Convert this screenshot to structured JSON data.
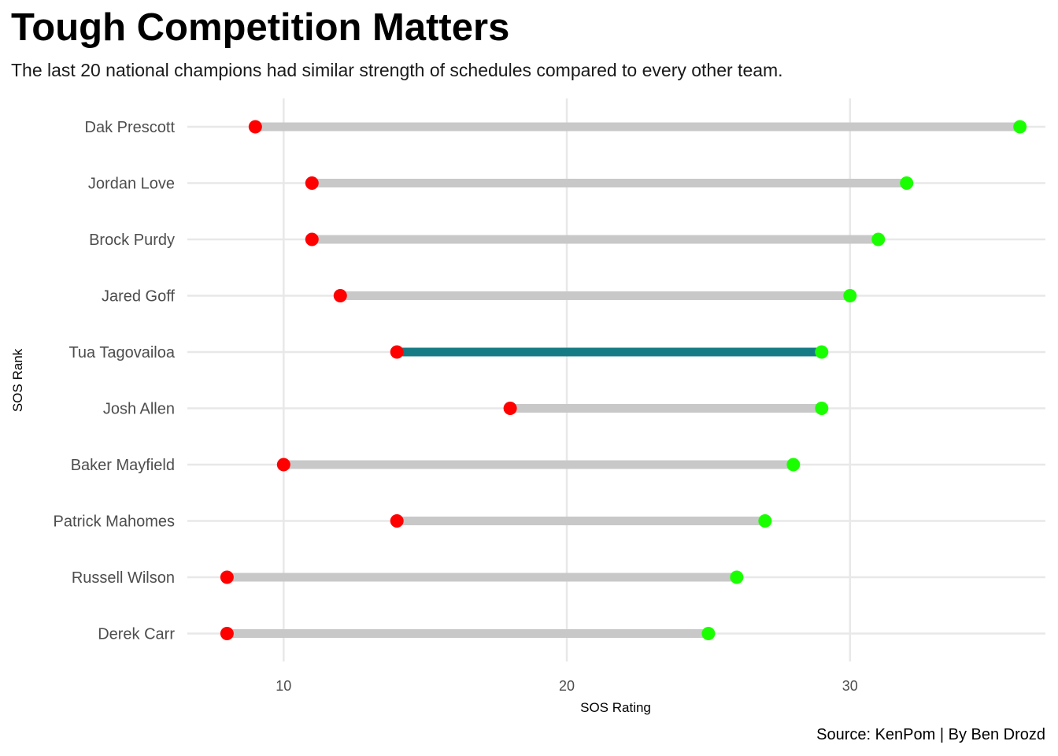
{
  "chart_data": {
    "type": "dumbbell",
    "title": "Tough Competition Matters",
    "subtitle": "The last 20 national champions had similar strength of schedules compared to every other team.",
    "caption": "Source: KenPom | By Ben Drozd",
    "xlabel": "SOS Rating",
    "ylabel": "SOS Rank",
    "xlim": [
      6.6,
      36.9
    ],
    "x_ticks": [
      10,
      20,
      30
    ],
    "grid": true,
    "categories": [
      "Dak Prescott",
      "Jordan Love",
      "Brock Purdy",
      "Jared Goff",
      "Tua Tagovailoa",
      "Josh Allen",
      "Baker Mayfield",
      "Patrick Mahomes",
      "Russell Wilson",
      "Derek Carr"
    ],
    "low": [
      9,
      11,
      11,
      12,
      14,
      18,
      10,
      14,
      8,
      8
    ],
    "high": [
      36,
      32,
      31,
      30,
      29,
      29,
      28,
      27,
      26,
      25
    ],
    "highlight": "Tua Tagovailoa",
    "colors": {
      "low_point": "#ff0000",
      "high_point": "#1aff00",
      "segment": "#c8c8c8",
      "highlight_segment": "#167b84",
      "grid": "#e8e8e8"
    }
  }
}
